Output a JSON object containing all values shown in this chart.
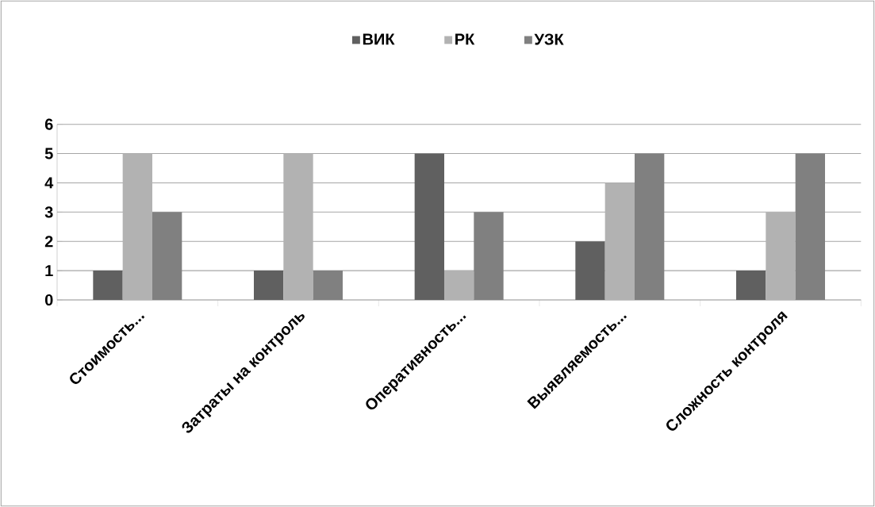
{
  "chart_data": {
    "type": "bar",
    "categories": [
      "Стоимость...",
      "Затраты на контроль",
      "Оперативность...",
      "Выявляемость...",
      "Сложность контроля"
    ],
    "series": [
      {
        "name": "ВИК",
        "color": "#606060",
        "values": [
          1,
          1,
          5,
          2,
          1
        ]
      },
      {
        "name": "РК",
        "color": "#b2b2b2",
        "values": [
          5,
          5,
          1,
          4,
          3
        ]
      },
      {
        "name": "УЗК",
        "color": "#808080",
        "values": [
          3,
          1,
          3,
          5,
          5
        ]
      }
    ],
    "ylim": [
      0,
      6
    ],
    "yticks": [
      0,
      1,
      2,
      3,
      4,
      5,
      6
    ],
    "grid": "y",
    "legend": "top"
  }
}
